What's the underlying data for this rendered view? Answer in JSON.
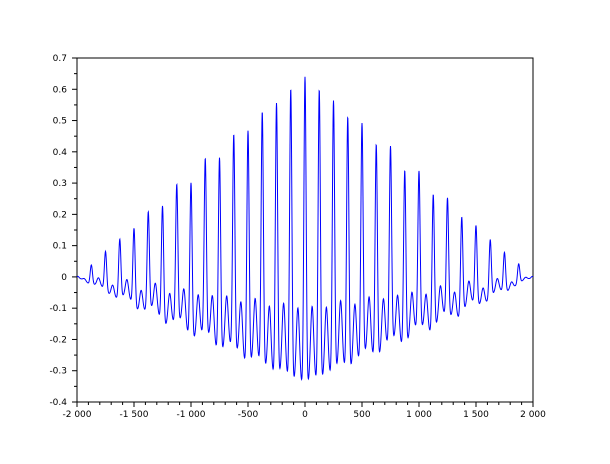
{
  "chart_data": {
    "type": "line",
    "title": "",
    "xlabel": "",
    "ylabel": "",
    "xlim": [
      -2000,
      2000
    ],
    "ylim": [
      -0.4,
      0.7
    ],
    "grid": false,
    "x_ticks": [
      -2000,
      -1500,
      -1000,
      -500,
      0,
      500,
      1000,
      1500,
      2000
    ],
    "x_tick_labels": [
      "-2 000",
      "-1 500",
      "-1 000",
      "-500",
      "0",
      "500",
      "1 000",
      "1 500",
      "2 000"
    ],
    "y_ticks": [
      -0.4,
      -0.3,
      -0.2,
      -0.1,
      0,
      0.1,
      0.2,
      0.3,
      0.4,
      0.5,
      0.6,
      0.7
    ],
    "y_tick_labels": [
      "-0.4",
      "-0.3",
      "-0.2",
      "-0.1",
      "0",
      "0.1",
      "0.2",
      "0.3",
      "0.4",
      "0.5",
      "0.6",
      "0.7"
    ],
    "series": [
      {
        "color": "#0000ff",
        "shape": "oscillation with triangular envelope centered at x=0",
        "oscillation_period": 125,
        "peak_max": 0.64,
        "trough_min": -0.35,
        "secondary_bump": -0.1,
        "envelope_zero_at": [
          -2000,
          2000
        ]
      }
    ]
  }
}
